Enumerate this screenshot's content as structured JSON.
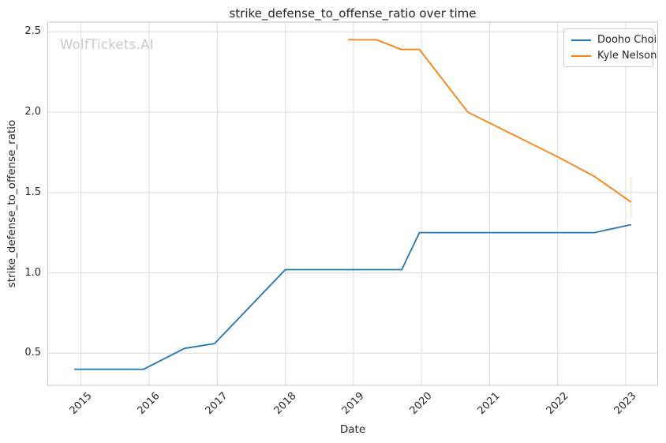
{
  "watermark": "WolfTickets.AI",
  "chart_data": {
    "type": "line",
    "title": "strike_defense_to_offense_ratio over time",
    "xlabel": "Date",
    "ylabel": "strike_defense_to_offense_ratio",
    "x_tick_labels": [
      "2015",
      "2016",
      "2017",
      "2018",
      "2019",
      "2020",
      "2021",
      "2022",
      "2023"
    ],
    "x_tick_values": [
      2015,
      2016,
      2017,
      2018,
      2019,
      2020,
      2021,
      2022,
      2023
    ],
    "y_tick_labels": [
      "0.5",
      "1.0",
      "1.5",
      "2.0",
      "2.5"
    ],
    "y_tick_values": [
      0.5,
      1.0,
      1.5,
      2.0,
      2.5
    ],
    "xlim": [
      2014.51,
      2023.47
    ],
    "ylim": [
      0.3,
      2.56
    ],
    "grid": true,
    "legend_position": "upper right",
    "series": [
      {
        "name": "Dooho Choi",
        "color": "#1f77b4",
        "x": [
          2014.9,
          2015.92,
          2016.52,
          2016.96,
          2018.0,
          2019.71,
          2019.97,
          2022.54,
          2023.08
        ],
        "y": [
          0.4,
          0.4,
          0.53,
          0.56,
          1.02,
          1.02,
          1.25,
          1.25,
          1.3
        ]
      },
      {
        "name": "Kyle Nelson",
        "color": "#ff7f0e",
        "x": [
          2018.92,
          2019.34,
          2019.7,
          2019.97,
          2020.68,
          2022.01,
          2022.54,
          2023.08
        ],
        "y": [
          2.45,
          2.45,
          2.39,
          2.39,
          2.0,
          1.72,
          1.6,
          1.44
        ]
      }
    ],
    "annotations": [
      {
        "type": "vline",
        "x": 2023.08,
        "y_from": 1.34,
        "y_to": 1.6,
        "color": "#ffddb8"
      }
    ],
    "style": {
      "grid_color": "#dcdcdc",
      "spine_color": "#c6c6c6",
      "background": "#ffffff"
    }
  }
}
